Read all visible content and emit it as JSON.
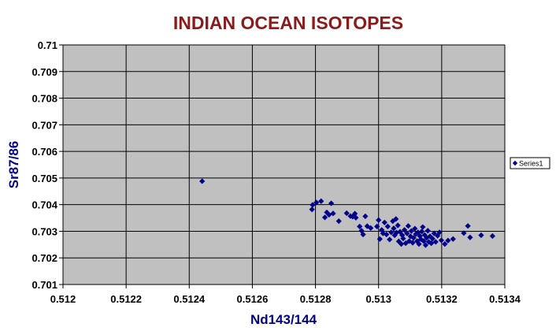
{
  "chart_data": {
    "type": "scatter",
    "title": "INDIAN OCEAN ISOTOPES",
    "xlabel": "Nd143/144",
    "ylabel": "Sr87/86",
    "xlim": [
      0.512,
      0.5134
    ],
    "ylim": [
      0.701,
      0.71
    ],
    "x_ticks": [
      "0.512",
      "0.5122",
      "0.5124",
      "0.5126",
      "0.5128",
      "0.513",
      "0.5132",
      "0.5134"
    ],
    "y_ticks": [
      "0.701",
      "0.702",
      "0.703",
      "0.704",
      "0.705",
      "0.706",
      "0.707",
      "0.708",
      "0.709",
      "0.71"
    ],
    "grid": true,
    "legend_position": "right",
    "colors": {
      "title": "#8B1A1A",
      "axis_label": "#00008B",
      "marker": "#00008B",
      "plot_bg": "#C0C0C0",
      "grid": "#000000"
    },
    "series": [
      {
        "name": "Series1",
        "marker": "diamond",
        "points": [
          [
            0.512441,
            0.70488
          ],
          [
            0.512789,
            0.70382
          ],
          [
            0.512791,
            0.70399
          ],
          [
            0.512803,
            0.70408
          ],
          [
            0.512818,
            0.70413
          ],
          [
            0.51283,
            0.70352
          ],
          [
            0.512836,
            0.70371
          ],
          [
            0.512843,
            0.70362
          ],
          [
            0.51285,
            0.70405
          ],
          [
            0.512856,
            0.70367
          ],
          [
            0.512874,
            0.70338
          ],
          [
            0.512899,
            0.70368
          ],
          [
            0.512911,
            0.70357
          ],
          [
            0.512918,
            0.70355
          ],
          [
            0.512925,
            0.70366
          ],
          [
            0.512928,
            0.70351
          ],
          [
            0.51294,
            0.70318
          ],
          [
            0.512946,
            0.70302
          ],
          [
            0.512951,
            0.70288
          ],
          [
            0.512958,
            0.70356
          ],
          [
            0.512964,
            0.70319
          ],
          [
            0.512975,
            0.70312
          ],
          [
            0.512995,
            0.70318
          ],
          [
            0.513,
            0.70342
          ],
          [
            0.513004,
            0.70271
          ],
          [
            0.51301,
            0.70305
          ],
          [
            0.513014,
            0.70292
          ],
          [
            0.513019,
            0.70333
          ],
          [
            0.513025,
            0.70288
          ],
          [
            0.513029,
            0.70318
          ],
          [
            0.513035,
            0.70269
          ],
          [
            0.51304,
            0.70296
          ],
          [
            0.513045,
            0.70338
          ],
          [
            0.513048,
            0.70311
          ],
          [
            0.513051,
            0.70285
          ],
          [
            0.513055,
            0.70346
          ],
          [
            0.513057,
            0.70295
          ],
          [
            0.513061,
            0.70322
          ],
          [
            0.513064,
            0.70262
          ],
          [
            0.513068,
            0.70298
          ],
          [
            0.513072,
            0.70252
          ],
          [
            0.513075,
            0.70285
          ],
          [
            0.513078,
            0.70273
          ],
          [
            0.513082,
            0.70305
          ],
          [
            0.513086,
            0.70255
          ],
          [
            0.51309,
            0.70292
          ],
          [
            0.513094,
            0.7032
          ],
          [
            0.513097,
            0.70263
          ],
          [
            0.513101,
            0.70281
          ],
          [
            0.513104,
            0.70301
          ],
          [
            0.513108,
            0.70257
          ],
          [
            0.513111,
            0.70275
          ],
          [
            0.513115,
            0.7031
          ],
          [
            0.513118,
            0.70289
          ],
          [
            0.513122,
            0.70263
          ],
          [
            0.513125,
            0.70296
          ],
          [
            0.513128,
            0.70252
          ],
          [
            0.513131,
            0.70282
          ],
          [
            0.513134,
            0.7027
          ],
          [
            0.513137,
            0.70299
          ],
          [
            0.51314,
            0.70316
          ],
          [
            0.513143,
            0.70263
          ],
          [
            0.513146,
            0.70286
          ],
          [
            0.513149,
            0.70248
          ],
          [
            0.513152,
            0.70275
          ],
          [
            0.513156,
            0.70302
          ],
          [
            0.513159,
            0.7026
          ],
          [
            0.513163,
            0.70281
          ],
          [
            0.513167,
            0.70255
          ],
          [
            0.513171,
            0.70272
          ],
          [
            0.513176,
            0.70292
          ],
          [
            0.513181,
            0.7026
          ],
          [
            0.513187,
            0.70283
          ],
          [
            0.513193,
            0.70296
          ],
          [
            0.513199,
            0.70266
          ],
          [
            0.51321,
            0.70252
          ],
          [
            0.51322,
            0.70265
          ],
          [
            0.513236,
            0.70271
          ],
          [
            0.51327,
            0.70293
          ],
          [
            0.513283,
            0.7032
          ],
          [
            0.51329,
            0.70277
          ],
          [
            0.513325,
            0.70285
          ],
          [
            0.513361,
            0.70282
          ]
        ]
      }
    ]
  }
}
